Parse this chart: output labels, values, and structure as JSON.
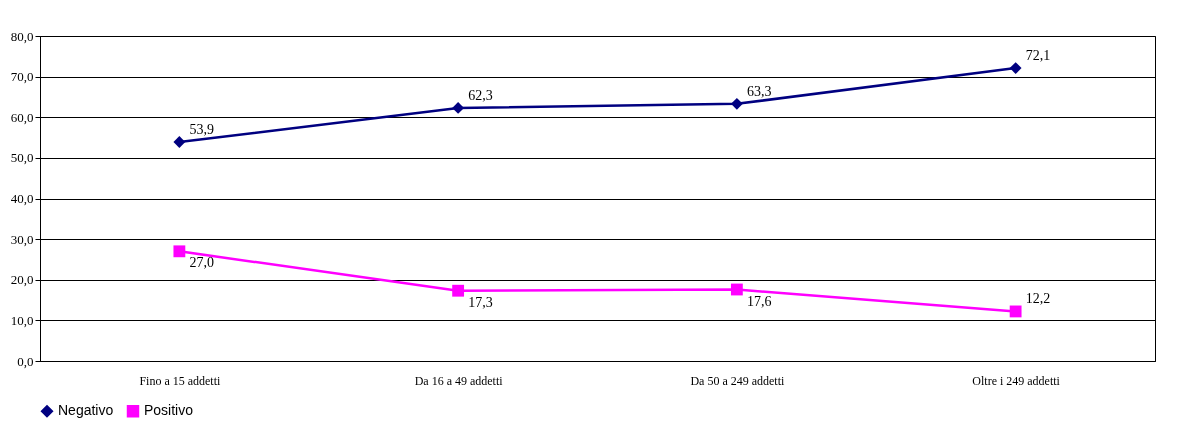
{
  "chart_data": {
    "type": "line",
    "categories": [
      "Fino a 15 addetti",
      "Da 16 a 49 addetti",
      "Da 50 a 249 addetti",
      "Oltre i 249 addetti"
    ],
    "series": [
      {
        "name": "Negativo",
        "color": "#000080",
        "marker": "diamond",
        "values": [
          53.9,
          62.3,
          63.3,
          72.1
        ],
        "value_labels": [
          "53,9",
          "62,3",
          "63,3",
          "72,1"
        ]
      },
      {
        "name": "Positivo",
        "color": "#ff00ff",
        "marker": "square",
        "values": [
          27.0,
          17.3,
          17.6,
          12.2
        ],
        "value_labels": [
          "27,0",
          "17,3",
          "17,6",
          "12,2"
        ]
      }
    ],
    "ylim": [
      0,
      80
    ],
    "yticks": [
      {
        "value": 0,
        "label": "0,0"
      },
      {
        "value": 10,
        "label": "10,0"
      },
      {
        "value": 20,
        "label": "20,0"
      },
      {
        "value": 30,
        "label": "30,0"
      },
      {
        "value": 40,
        "label": "40,0"
      },
      {
        "value": 50,
        "label": "50,0"
      },
      {
        "value": 60,
        "label": "60,0"
      },
      {
        "value": 70,
        "label": "70,0"
      },
      {
        "value": 80,
        "label": "80,0"
      }
    ],
    "grid": "y",
    "legend": "bottom",
    "line_style": "solid"
  }
}
